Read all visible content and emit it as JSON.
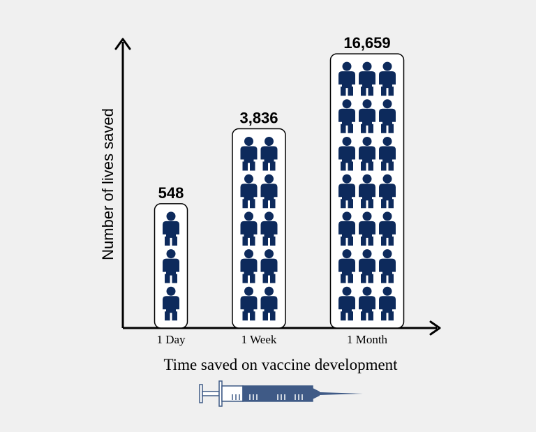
{
  "chart_data": {
    "type": "bar",
    "categories": [
      "1 Day",
      "1 Week",
      "1 Month"
    ],
    "values": [
      548,
      3836,
      16659
    ],
    "value_labels": [
      "548",
      "3,836",
      "16,659"
    ],
    "icon_grid": [
      {
        "cols": 1,
        "rows": 3
      },
      {
        "cols": 2,
        "rows": 5
      },
      {
        "cols": 3,
        "rows": 7
      }
    ],
    "xlabel": "Time saved on vaccine development",
    "ylabel": "Number of lives saved",
    "icon": "person-icon",
    "colors": {
      "icon": "#0d2a5c",
      "background": "#f0f0f0",
      "axis": "#000000",
      "syringe": "#3f5a86"
    }
  }
}
